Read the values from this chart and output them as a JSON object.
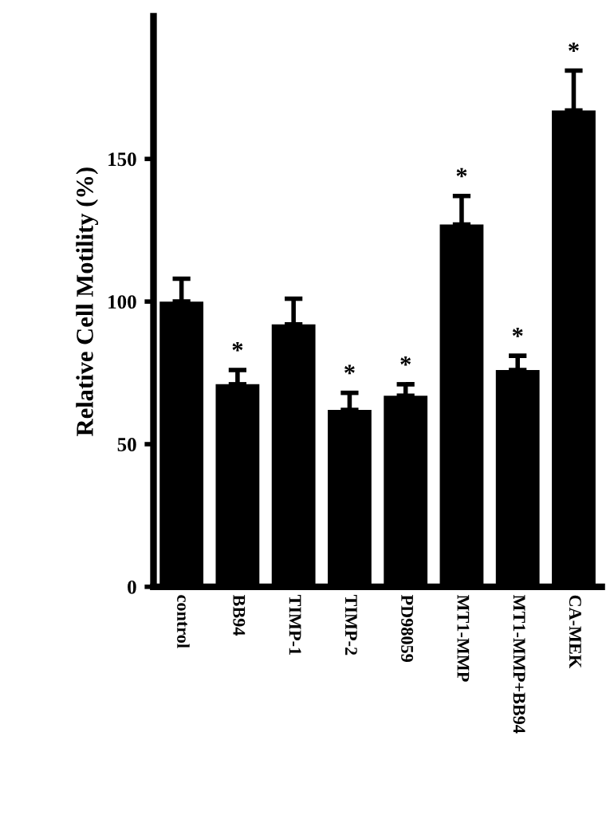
{
  "chart_data": {
    "type": "bar",
    "ylabel": "Relative Cell Motility (%)",
    "categories": [
      "control",
      "BB94",
      "TIMP-1",
      "TIMP-2",
      "PD98059",
      "MT1-MMP",
      "MT1-MMP+BB94",
      "CA-MEK"
    ],
    "values": [
      100,
      71,
      92,
      62,
      67,
      127,
      76,
      167
    ],
    "errors": [
      [
        100,
        108
      ],
      [
        71,
        76
      ],
      [
        92,
        101
      ],
      [
        62,
        68
      ],
      [
        67,
        71
      ],
      [
        127,
        137
      ],
      [
        76,
        81
      ],
      [
        167,
        181
      ]
    ],
    "value_labels": [
      null,
      "*",
      null,
      "*",
      "*",
      "*",
      "*",
      "*"
    ],
    "color": "#000000",
    "ylim": [
      0,
      200
    ],
    "yticks": [
      0,
      50,
      100,
      150
    ],
    "grid": false
  }
}
